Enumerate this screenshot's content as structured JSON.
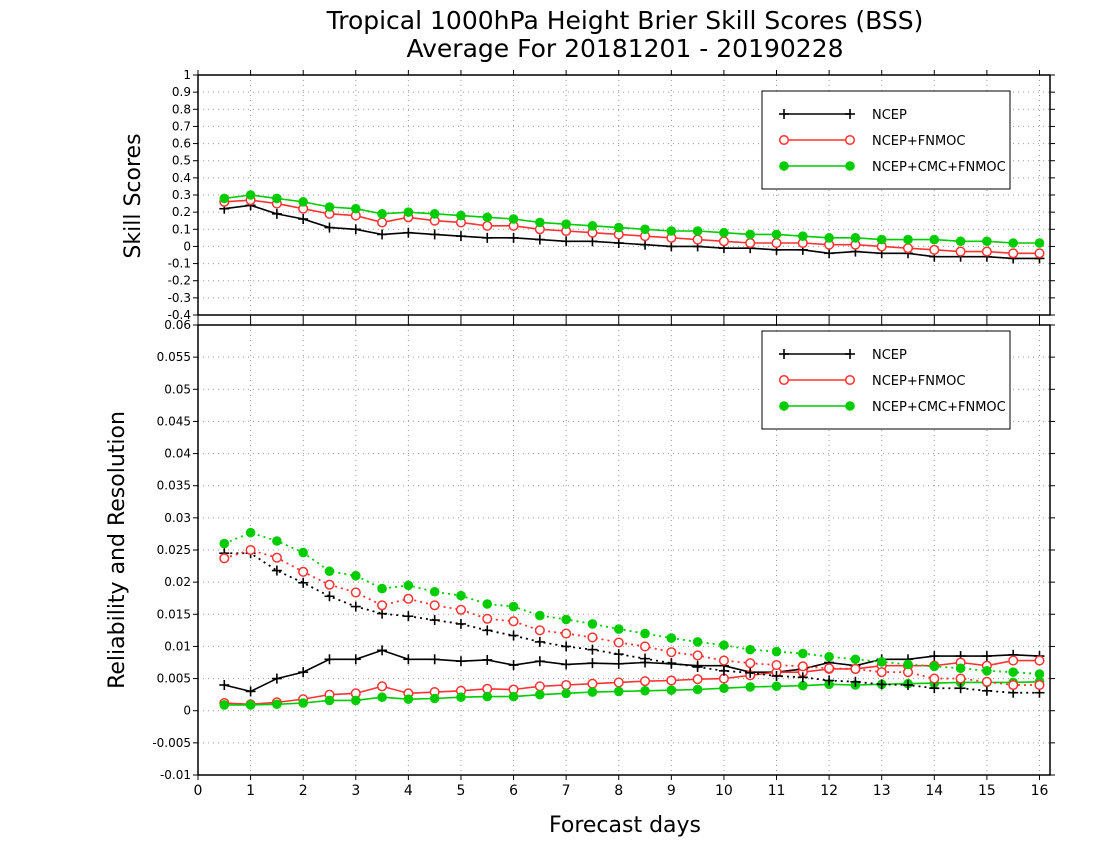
{
  "title_line1": "Tropical 1000hPa Height Brier Skill Scores (BSS)",
  "title_line2": "Average For 20181201 - 20190228",
  "xlabel": "Forecast days",
  "legend": [
    "NCEP",
    "NCEP+FNMOC",
    "NCEP+CMC+FNMOC"
  ],
  "colors": {
    "NCEP": "#000000",
    "NCEP+FNMOC": "#ff3333",
    "NCEP+CMC+FNMOC": "#00cc00"
  },
  "chart_data": [
    {
      "type": "line",
      "ylabel": "Skill Scores",
      "xlim": [
        0,
        16.2
      ],
      "ylim": [
        -0.4,
        1.0
      ],
      "x_ticks": [
        "0",
        "1",
        "2",
        "3",
        "4",
        "5",
        "6",
        "7",
        "8",
        "9",
        "10",
        "11",
        "12",
        "13",
        "14",
        "15",
        "16"
      ],
      "y_ticks": [
        "1",
        "0.9",
        "0.8",
        "0.7",
        "0.6",
        "0.5",
        "0.4",
        "0.3",
        "0.2",
        "0.1",
        "0",
        "-0.1",
        "-0.2",
        "-0.3",
        "-0.4"
      ],
      "grid": true,
      "legend_position": "top-right",
      "x": [
        0.5,
        1.0,
        1.5,
        2.0,
        2.5,
        3.0,
        3.5,
        4.0,
        4.5,
        5.0,
        5.5,
        6.0,
        6.5,
        7.0,
        7.5,
        8.0,
        8.5,
        9.0,
        9.5,
        10.0,
        10.5,
        11.0,
        11.5,
        12.0,
        12.5,
        13.0,
        13.5,
        14.0,
        14.5,
        15.0,
        15.5,
        16.0
      ],
      "series": [
        {
          "name": "NCEP",
          "style": "solid",
          "marker": "plus",
          "values": [
            0.22,
            0.24,
            0.19,
            0.16,
            0.11,
            0.1,
            0.07,
            0.08,
            0.07,
            0.06,
            0.05,
            0.05,
            0.04,
            0.03,
            0.03,
            0.02,
            0.01,
            0.0,
            0.0,
            -0.01,
            -0.01,
            -0.02,
            -0.02,
            -0.04,
            -0.03,
            -0.04,
            -0.04,
            -0.06,
            -0.06,
            -0.06,
            -0.07,
            -0.07
          ]
        },
        {
          "name": "NCEP+FNMOC",
          "style": "solid",
          "marker": "open-circle",
          "values": [
            0.26,
            0.27,
            0.25,
            0.22,
            0.19,
            0.18,
            0.14,
            0.17,
            0.15,
            0.14,
            0.12,
            0.12,
            0.1,
            0.09,
            0.08,
            0.07,
            0.06,
            0.05,
            0.04,
            0.03,
            0.02,
            0.02,
            0.02,
            0.01,
            0.01,
            0.0,
            -0.01,
            -0.02,
            -0.03,
            -0.03,
            -0.04,
            -0.04
          ]
        },
        {
          "name": "NCEP+CMC+FNMOC",
          "style": "solid",
          "marker": "filled-circle",
          "values": [
            0.28,
            0.3,
            0.28,
            0.26,
            0.23,
            0.22,
            0.19,
            0.2,
            0.19,
            0.18,
            0.17,
            0.16,
            0.14,
            0.13,
            0.12,
            0.11,
            0.1,
            0.09,
            0.09,
            0.08,
            0.07,
            0.07,
            0.06,
            0.05,
            0.05,
            0.04,
            0.04,
            0.04,
            0.03,
            0.03,
            0.02,
            0.02
          ]
        }
      ]
    },
    {
      "type": "line",
      "ylabel": "Reliability and Resolution",
      "xlim": [
        0,
        16.2
      ],
      "ylim": [
        -0.01,
        0.06
      ],
      "x_ticks": [
        "0",
        "1",
        "2",
        "3",
        "4",
        "5",
        "6",
        "7",
        "8",
        "9",
        "10",
        "11",
        "12",
        "13",
        "14",
        "15",
        "16"
      ],
      "y_ticks": [
        "0.06",
        "0.055",
        "0.05",
        "0.045",
        "0.04",
        "0.035",
        "0.03",
        "0.025",
        "0.02",
        "0.015",
        "0.01",
        "0.005",
        "0",
        "-0.005",
        "-0.01"
      ],
      "grid": true,
      "legend_position": "top-right",
      "x": [
        0.5,
        1.0,
        1.5,
        2.0,
        2.5,
        3.0,
        3.5,
        4.0,
        4.5,
        5.0,
        5.5,
        6.0,
        6.5,
        7.0,
        7.5,
        8.0,
        8.5,
        9.0,
        9.5,
        10.0,
        10.5,
        11.0,
        11.5,
        12.0,
        12.5,
        13.0,
        13.5,
        14.0,
        14.5,
        15.0,
        15.5,
        16.0
      ],
      "series": [
        {
          "name": "NCEP",
          "metric": "reliability",
          "style": "solid",
          "marker": "plus",
          "values": [
            0.004,
            0.003,
            0.005,
            0.006,
            0.008,
            0.008,
            0.0094,
            0.008,
            0.008,
            0.0077,
            0.0079,
            0.0071,
            0.0077,
            0.0072,
            0.0074,
            0.0073,
            0.0075,
            0.0073,
            0.007,
            0.007,
            0.006,
            0.006,
            0.0065,
            0.0075,
            0.007,
            0.008,
            0.008,
            0.0085,
            0.0085,
            0.0085,
            0.0087,
            0.0085
          ]
        },
        {
          "name": "NCEP+FNMOC",
          "metric": "reliability",
          "style": "solid",
          "marker": "open-circle",
          "values": [
            0.0012,
            0.001,
            0.0013,
            0.0018,
            0.0025,
            0.0027,
            0.0038,
            0.0027,
            0.0029,
            0.0031,
            0.0034,
            0.0033,
            0.0038,
            0.004,
            0.0042,
            0.0044,
            0.0046,
            0.0047,
            0.0049,
            0.005,
            0.0055,
            0.006,
            0.006,
            0.0065,
            0.0065,
            0.007,
            0.007,
            0.007,
            0.0075,
            0.007,
            0.0078,
            0.0078
          ]
        },
        {
          "name": "NCEP+CMC+FNMOC",
          "metric": "reliability",
          "style": "solid",
          "marker": "filled-circle",
          "values": [
            0.0009,
            0.0009,
            0.001,
            0.0012,
            0.0016,
            0.0016,
            0.0021,
            0.0018,
            0.0019,
            0.0021,
            0.0022,
            0.0022,
            0.0025,
            0.0027,
            0.0029,
            0.003,
            0.0031,
            0.0032,
            0.0033,
            0.0035,
            0.0037,
            0.0038,
            0.0039,
            0.0041,
            0.004,
            0.0041,
            0.0042,
            0.0043,
            0.0044,
            0.0044,
            0.0044,
            0.0045
          ]
        },
        {
          "name": "NCEP",
          "metric": "resolution",
          "style": "dotted",
          "marker": "plus",
          "values": [
            0.0245,
            0.0245,
            0.0218,
            0.0199,
            0.0178,
            0.0162,
            0.0151,
            0.0147,
            0.0141,
            0.0135,
            0.0125,
            0.0117,
            0.0107,
            0.01,
            0.0095,
            0.0088,
            0.0081,
            0.0074,
            0.0068,
            0.0062,
            0.0059,
            0.0054,
            0.0052,
            0.0047,
            0.0045,
            0.0041,
            0.004,
            0.0035,
            0.0035,
            0.0031,
            0.0028,
            0.0028
          ]
        },
        {
          "name": "NCEP+FNMOC",
          "metric": "resolution",
          "style": "dotted",
          "marker": "open-circle",
          "values": [
            0.0237,
            0.025,
            0.0238,
            0.0216,
            0.0196,
            0.0184,
            0.0164,
            0.0174,
            0.0164,
            0.0157,
            0.0143,
            0.0139,
            0.0125,
            0.012,
            0.0114,
            0.0106,
            0.01,
            0.0091,
            0.0086,
            0.0078,
            0.0074,
            0.0071,
            0.0069,
            0.0066,
            0.0065,
            0.006,
            0.006,
            0.005,
            0.005,
            0.0045,
            0.004,
            0.004
          ]
        },
        {
          "name": "NCEP+CMC+FNMOC",
          "metric": "resolution",
          "style": "dotted",
          "marker": "filled-circle",
          "values": [
            0.026,
            0.0277,
            0.0264,
            0.0246,
            0.0217,
            0.021,
            0.019,
            0.0195,
            0.0185,
            0.0179,
            0.0166,
            0.0162,
            0.0148,
            0.0142,
            0.0135,
            0.0127,
            0.012,
            0.0113,
            0.0107,
            0.0102,
            0.0095,
            0.0092,
            0.0089,
            0.0084,
            0.008,
            0.0076,
            0.0072,
            0.0069,
            0.0066,
            0.0062,
            0.006,
            0.0057
          ]
        }
      ]
    }
  ]
}
